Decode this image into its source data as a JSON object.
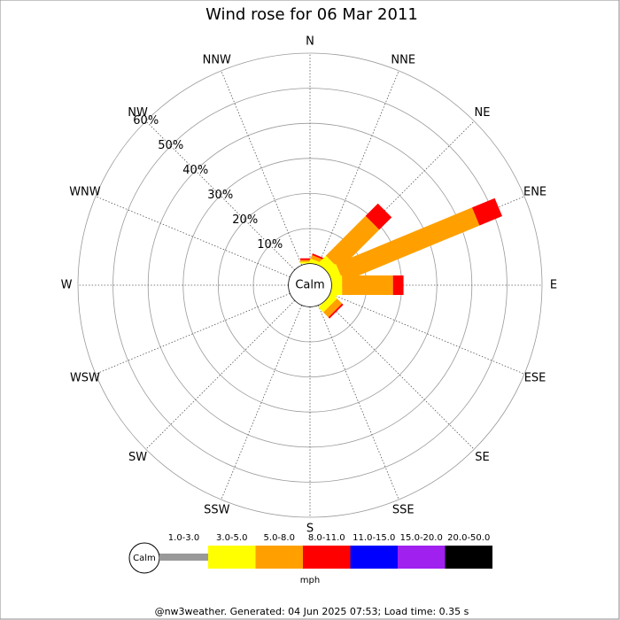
{
  "chart_data": {
    "type": "windrose",
    "title": "Wind rose for 06 Mar 2011",
    "calm_label": "Calm",
    "unit": "mph",
    "footer": "@nw3weather. Generated: 04 Jun 2025 07:53; Load time: 0.35 s",
    "directions": [
      "N",
      "NNE",
      "NE",
      "ENE",
      "E",
      "ESE",
      "SE",
      "SSE",
      "S",
      "SSW",
      "SW",
      "WSW",
      "W",
      "WNW",
      "NW",
      "NNW"
    ],
    "rlim": [
      0,
      60
    ],
    "rticks": [
      {
        "value": 10,
        "label": "10%"
      },
      {
        "value": 20,
        "label": "20%"
      },
      {
        "value": 30,
        "label": "30%"
      },
      {
        "value": 40,
        "label": "40%"
      },
      {
        "value": 50,
        "label": "50%"
      },
      {
        "value": 60,
        "label": "60%"
      }
    ],
    "series": [
      {
        "name": "1.0-3.0",
        "color": "#999999",
        "values": [
          0,
          0,
          0,
          0,
          0,
          0,
          0,
          0,
          0,
          0,
          0,
          0,
          0,
          0,
          0,
          0
        ]
      },
      {
        "name": "3.0-5.0",
        "color": "#ffff00",
        "values": [
          0.5,
          1,
          3,
          3,
          3,
          2,
          2,
          0,
          0,
          0,
          0,
          0,
          0,
          0,
          0,
          0
        ]
      },
      {
        "name": "5.0-8.0",
        "color": "#ffa000",
        "values": [
          0.5,
          1,
          16,
          42,
          14.5,
          0,
          2,
          0,
          0,
          0,
          0,
          0,
          0,
          0,
          0,
          0
        ]
      },
      {
        "name": "8.0-11.0",
        "color": "#ff0000",
        "values": [
          0.5,
          0.5,
          5,
          7,
          3,
          0,
          0.5,
          0,
          0,
          0,
          0,
          0,
          0,
          0,
          0,
          0
        ]
      },
      {
        "name": "11.0-15.0",
        "color": "#0000ff",
        "values": [
          0,
          0,
          0,
          0,
          0,
          0,
          0,
          0,
          0,
          0,
          0,
          0,
          0,
          0,
          0,
          0
        ]
      },
      {
        "name": "15.0-20.0",
        "color": "#a020f0",
        "values": [
          0,
          0,
          0,
          0,
          0,
          0,
          0,
          0,
          0,
          0,
          0,
          0,
          0,
          0,
          0,
          0
        ]
      },
      {
        "name": "20.0-50.0",
        "color": "#000000",
        "values": [
          0,
          0,
          0,
          0,
          0,
          0,
          0,
          0,
          0,
          0,
          0,
          0,
          0,
          0,
          0,
          0
        ]
      }
    ]
  }
}
